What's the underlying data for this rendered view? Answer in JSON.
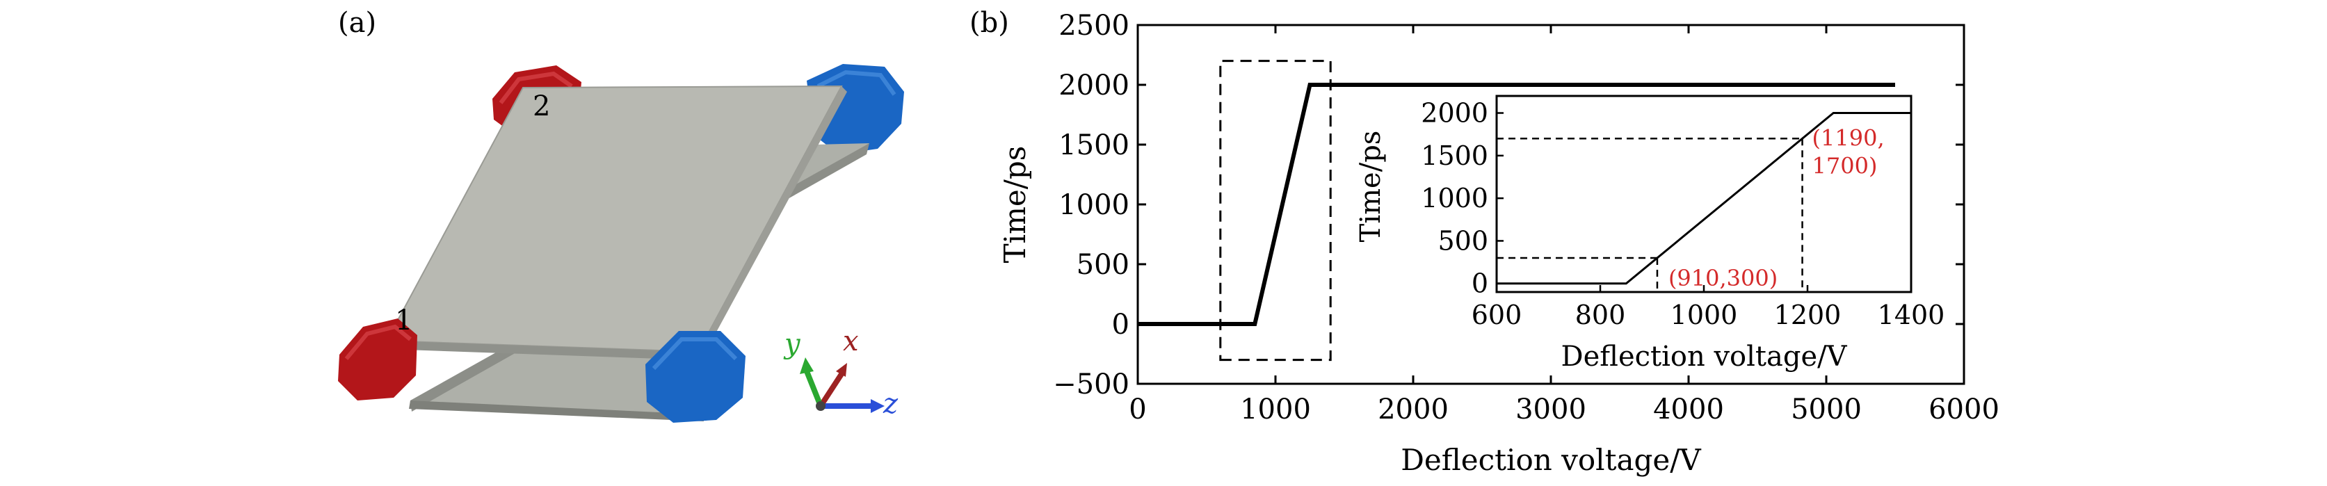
{
  "panel_a": {
    "label": "(a)",
    "plate_labels": [
      "1",
      "2"
    ],
    "axes_triad": {
      "y": "y",
      "x": "x",
      "z": "z"
    },
    "colors": {
      "red_electrode": "#b3161a",
      "blue_electrode": "#1a66c4",
      "plate": "#b8b9b2"
    }
  },
  "panel_b": {
    "label": "(b)"
  },
  "chart_data": [
    {
      "type": "line",
      "xlabel": "Deflection voltage/V",
      "ylabel": "Time/ps",
      "xlim": [
        0,
        6000
      ],
      "ylim": [
        -500,
        2500
      ],
      "xticks": [
        0,
        1000,
        2000,
        3000,
        4000,
        5000,
        6000
      ],
      "yticks": [
        -500,
        0,
        500,
        1000,
        1500,
        2000,
        2500
      ],
      "ytick_labels": [
        "−500",
        "0",
        "500",
        "1000",
        "1500",
        "2000",
        "2500"
      ],
      "grid": false,
      "series": [
        {
          "x": [
            0,
            850,
            1250,
            5500
          ],
          "y": [
            0,
            0,
            2000,
            2000
          ]
        }
      ],
      "zoom_box": {
        "x": [
          600,
          1400
        ],
        "y": [
          -300,
          2200
        ]
      }
    },
    {
      "type": "line",
      "inset": true,
      "xlabel": "Deflection voltage/V",
      "ylabel": "Time/ps",
      "xlim": [
        600,
        1400
      ],
      "ylim": [
        -100,
        2200
      ],
      "xticks": [
        600,
        800,
        1000,
        1200,
        1400
      ],
      "yticks": [
        0,
        500,
        1000,
        1500,
        2000
      ],
      "series": [
        {
          "x": [
            600,
            850,
            1250,
            1400
          ],
          "y": [
            0,
            0,
            2000,
            2000
          ]
        }
      ],
      "annotations": [
        {
          "x": 910,
          "y": 300,
          "label": "(910,300)"
        },
        {
          "x": 1190,
          "y": 1700,
          "label_lines": [
            "(1190,",
            "1700)"
          ]
        }
      ],
      "annotation_color": "#d42a2a"
    }
  ]
}
